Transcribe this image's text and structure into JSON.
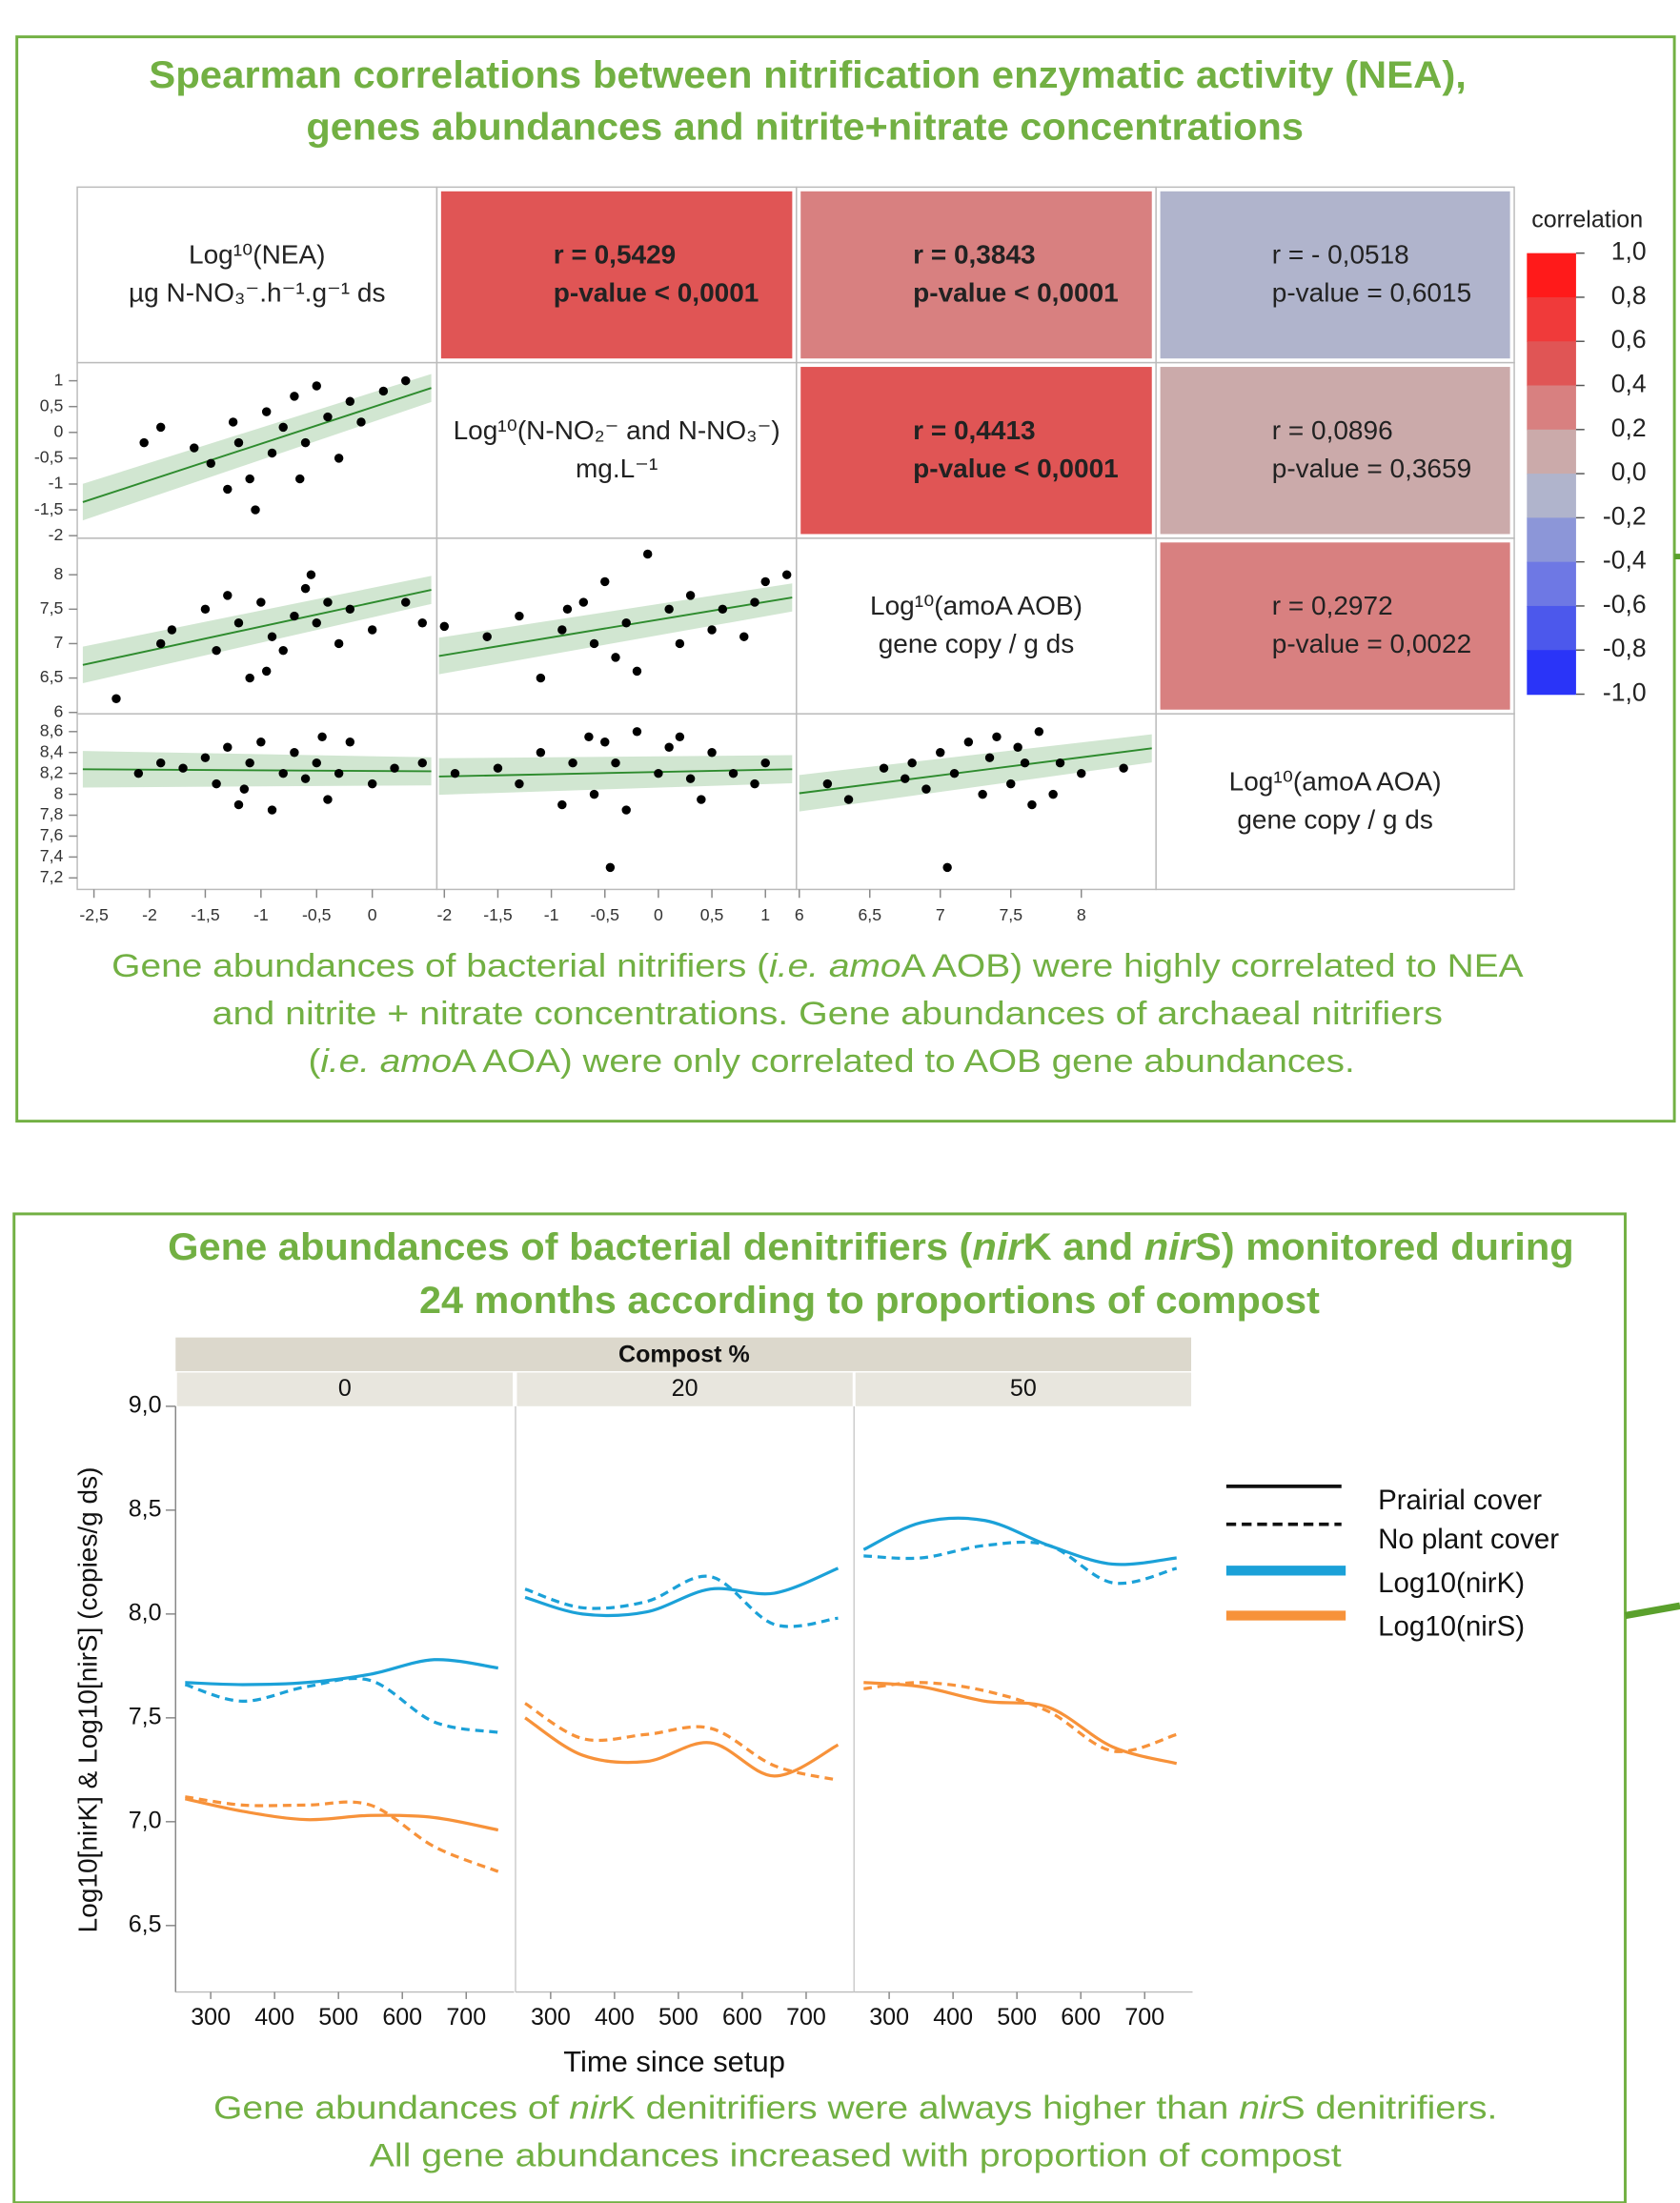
{
  "chart_data": [
    {
      "type": "correlation_matrix",
      "title": [
        "Spearman correlations between nitrification enzymatic activity (NEA),",
        "genes abundances and nitrite+nitrate concentrations"
      ],
      "variables": [
        {
          "label": [
            "Log¹⁰(NEA)",
            "µg N-NO₃⁻.h⁻¹.g⁻¹ ds"
          ],
          "xlim": [
            -2.65,
            0.58
          ],
          "xticks": [
            {
              "value": -2.5,
              "label": "-2,5"
            },
            -2,
            {
              "value": -1.5,
              "label": "-1,5"
            },
            -1,
            {
              "value": -0.5,
              "label": "-0,5"
            },
            0
          ]
        },
        {
          "label": [
            "Log¹⁰(N-NO₂⁻ and N-NO₃⁻)",
            "mg.L⁻¹"
          ],
          "xlim": [
            -2.07,
            1.29
          ],
          "xticks": [
            -2,
            {
              "value": -1.5,
              "label": "-1,5"
            },
            -1,
            {
              "value": -0.5,
              "label": "-0,5"
            },
            0,
            {
              "value": 0.5,
              "label": "0,5"
            },
            1
          ],
          "ylim": [
            -2.05,
            1.35
          ],
          "yticks": [
            1,
            {
              "value": 0.5,
              "label": "0,5"
            },
            0,
            {
              "value": -0.5,
              "label": "-0,5"
            },
            -1,
            {
              "value": -1.5,
              "label": "-1,5"
            },
            -2
          ]
        },
        {
          "label": [
            "Log¹⁰(amoA AOB)",
            "gene copy / g ds"
          ],
          "xlim": [
            5.98,
            8.53
          ],
          "xticks": [
            6,
            {
              "value": 6.5,
              "label": "6,5"
            },
            7,
            {
              "value": 7.5,
              "label": "7,5"
            },
            8
          ],
          "ylim": [
            5.98,
            8.53
          ],
          "yticks": [
            8,
            {
              "value": 7.5,
              "label": "7,5"
            },
            7,
            {
              "value": 6.5,
              "label": "6,5"
            },
            6
          ]
        },
        {
          "label": [
            "Log¹⁰(amoA AOA)",
            "gene copy / g ds"
          ],
          "ylim": [
            7.09,
            8.77
          ],
          "yticks": [
            {
              "value": 8.6,
              "label": "8,6"
            },
            {
              "value": 8.4,
              "label": "8,4"
            },
            {
              "value": 8.2,
              "label": "8,2"
            },
            8,
            {
              "value": 7.8,
              "label": "7,8"
            },
            {
              "value": 7.6,
              "label": "7,6"
            },
            {
              "value": 7.4,
              "label": "7,4"
            },
            {
              "value": 7.2,
              "label": "7,2"
            }
          ]
        }
      ],
      "r": [
        [
          0.5429,
          0.3843,
          -0.0518
        ],
        [
          0.4413,
          0.0896
        ],
        [
          0.2972
        ]
      ],
      "r_labels": [
        [
          "r = 0,5429",
          "r = 0,3843",
          "r = - 0,0518"
        ],
        [
          "r = 0,4413",
          "r = 0,0896"
        ],
        [
          "r = 0,2972"
        ]
      ],
      "p_labels": [
        [
          "p-value < 0,0001",
          "p-value < 0,0001",
          "p-value = 0,6015"
        ],
        [
          "p-value < 0,0001",
          "p-value = 0,3659"
        ],
        [
          "p-value = 0,0022"
        ]
      ],
      "scatter": [
        [
          {
            "x": [
              -2.05,
              -1.9,
              -1.6,
              -1.45,
              -1.3,
              -1.25,
              -1.1,
              -1.05,
              -0.95,
              -0.9,
              -0.8,
              -0.7,
              -0.6,
              -0.5,
              -0.4,
              -0.3,
              -0.2,
              -0.1,
              0.1,
              0.3,
              -1.2,
              -0.65
            ],
            "y": [
              -0.2,
              0.1,
              -0.3,
              -0.6,
              -1.1,
              0.2,
              -0.9,
              -1.5,
              0.4,
              -0.4,
              0.1,
              0.7,
              -0.2,
              0.9,
              0.3,
              -0.5,
              0.6,
              0.2,
              0.8,
              1.0,
              -0.2,
              -0.9
            ],
            "fit": {
              "x": [
                -2.6,
                0.53
              ],
              "y": [
                -1.35,
                0.86
              ]
            }
          }
        ],
        [
          {
            "x": [
              -2.3,
              -1.9,
              -1.8,
              -1.5,
              -1.4,
              -1.2,
              -1.1,
              -1.0,
              -0.9,
              -0.8,
              -0.7,
              -0.6,
              -0.5,
              -0.4,
              -0.3,
              -0.2,
              0.0,
              0.3,
              0.45,
              -1.3,
              -0.55,
              -0.95
            ],
            "y": [
              6.2,
              7.0,
              7.2,
              7.5,
              6.9,
              7.3,
              6.5,
              7.6,
              7.1,
              6.9,
              7.4,
              7.8,
              7.3,
              7.6,
              7.0,
              7.5,
              7.2,
              7.6,
              7.3,
              7.7,
              8.0,
              6.6
            ],
            "fit": {
              "x": [
                -2.6,
                0.53
              ],
              "y": [
                6.69,
                7.78
              ]
            }
          },
          {
            "x": [
              -2.0,
              -1.6,
              -1.3,
              -1.1,
              -0.9,
              -0.7,
              -0.6,
              -0.5,
              -0.4,
              -0.3,
              -0.2,
              -0.1,
              0.1,
              0.2,
              0.3,
              0.5,
              0.6,
              0.8,
              0.9,
              1.0,
              1.2,
              -0.85
            ],
            "y": [
              7.25,
              7.1,
              7.4,
              6.5,
              7.2,
              7.6,
              7.0,
              7.9,
              6.8,
              7.3,
              6.6,
              8.3,
              7.5,
              7.0,
              7.7,
              7.2,
              7.5,
              7.1,
              7.6,
              7.9,
              8.0,
              7.5
            ],
            "fit": {
              "x": [
                -2.05,
                1.25
              ],
              "y": [
                6.82,
                7.67
              ]
            }
          }
        ],
        [
          {
            "x": [
              -2.1,
              -1.9,
              -1.7,
              -1.5,
              -1.4,
              -1.3,
              -1.2,
              -1.1,
              -1.0,
              -0.9,
              -0.8,
              -0.7,
              -0.6,
              -0.5,
              -0.4,
              -0.3,
              -0.2,
              0.0,
              0.2,
              0.45,
              -1.15,
              -0.45
            ],
            "y": [
              8.2,
              8.3,
              8.25,
              8.35,
              8.1,
              8.45,
              7.9,
              8.3,
              8.5,
              7.85,
              8.2,
              8.4,
              8.15,
              8.3,
              7.95,
              8.2,
              8.5,
              8.1,
              8.25,
              8.3,
              8.05,
              8.55
            ],
            "fit": {
              "x": [
                -2.6,
                0.53
              ],
              "y": [
                8.24,
                8.22
              ]
            }
          },
          {
            "x": [
              -1.9,
              -1.5,
              -1.3,
              -1.1,
              -0.9,
              -0.8,
              -0.6,
              -0.5,
              -0.4,
              -0.3,
              -0.2,
              0.0,
              0.1,
              0.3,
              0.4,
              0.5,
              0.7,
              0.9,
              1.0,
              -0.45,
              -0.65,
              0.2
            ],
            "y": [
              8.2,
              8.25,
              8.1,
              8.4,
              7.9,
              8.3,
              8.0,
              8.5,
              8.3,
              7.85,
              8.6,
              8.2,
              8.45,
              8.15,
              7.95,
              8.4,
              8.2,
              8.1,
              8.3,
              7.3,
              8.55,
              8.55
            ],
            "fit": {
              "x": [
                -2.05,
                1.25
              ],
              "y": [
                8.17,
                8.24
              ]
            }
          },
          {
            "x": [
              6.2,
              6.35,
              6.6,
              6.8,
              6.9,
              7.0,
              7.05,
              7.1,
              7.2,
              7.3,
              7.35,
              7.4,
              7.5,
              7.55,
              7.6,
              7.7,
              7.8,
              7.85,
              8.0,
              8.3,
              6.75,
              7.65
            ],
            "y": [
              8.1,
              7.95,
              8.25,
              8.3,
              8.05,
              8.4,
              7.3,
              8.2,
              8.5,
              8.0,
              8.35,
              8.55,
              8.1,
              8.45,
              8.3,
              8.6,
              8.0,
              8.3,
              8.2,
              8.25,
              8.15,
              7.9
            ],
            "fit": {
              "x": [
                6.0,
                8.5
              ],
              "y": [
                8.01,
                8.44
              ]
            }
          }
        ]
      ],
      "point_color": "#000000",
      "fit_color": "#2e8b2e",
      "colorbar": {
        "title": "correlation",
        "zlim": [
          -1,
          1
        ],
        "colors": [
          "#ff1a1a",
          "#f03a3a",
          "#e05555",
          "#d88080",
          "#cbaaaa",
          "#b0b4cc",
          "#8c96d8",
          "#6e78e4",
          "#4c58ec",
          "#2a34f8"
        ],
        "ticks": [
          {
            "value": 1,
            "label": "1,0"
          },
          {
            "value": 0.8,
            "label": "0,8"
          },
          {
            "value": 0.6,
            "label": "0,6"
          },
          {
            "value": 0.4,
            "label": "0,4"
          },
          {
            "value": 0.2,
            "label": "0,2"
          },
          {
            "value": 0,
            "label": "0,0"
          },
          {
            "value": -0.2,
            "label": "-0,2"
          },
          {
            "value": -0.4,
            "label": "-0,4"
          },
          {
            "value": -0.6,
            "label": "-0,6"
          },
          {
            "value": -0.8,
            "label": "-0,8"
          },
          {
            "value": -1,
            "label": "-1,0"
          }
        ]
      },
      "caption": [
        [
          "Gene abundances of bacterial nitrifiers (",
          "i.e. amo",
          "A AOB) were highly correlated to NEA"
        ],
        [
          "and nitrite + nitrate concentrations. Gene abundances of archaeal nitrifiers"
        ],
        [
          "(",
          "i.e. amo",
          "A AOA) were only correlated to AOB gene abundances."
        ]
      ]
    },
    {
      "type": "line",
      "title": [
        [
          "Gene abundances of bacterial denitrifiers (",
          "nir",
          "K and ",
          "nir",
          "S) monitored during"
        ],
        [
          "24 months according to proportions of compost"
        ]
      ],
      "facet_title": "Compost %",
      "x_label": "Time since setup",
      "y_label": "Log10[nirK] & Log10[nirS] (copies/g ds)",
      "x": [
        260,
        350,
        450,
        550,
        650,
        750
      ],
      "xlim": [
        245,
        775
      ],
      "xticks": [
        300,
        400,
        500,
        600,
        700
      ],
      "ylim": [
        6.18,
        9.0
      ],
      "yticks": [
        {
          "value": 9,
          "label": "9,0"
        },
        {
          "value": 8.5,
          "label": "8,5"
        },
        {
          "value": 8,
          "label": "8,0"
        },
        {
          "value": 7.5,
          "label": "7,5"
        },
        {
          "value": 7,
          "label": "7,0"
        },
        {
          "value": 6.5,
          "label": "6,5"
        }
      ],
      "linestyles": [
        {
          "name": "Prairial cover",
          "dash": false
        },
        {
          "name": "No plant cover",
          "dash": true
        }
      ],
      "colors": [
        {
          "name": "Log10(nirK)",
          "color": "#1ba1d8"
        },
        {
          "name": "Log10(nirS)",
          "color": "#f7923a"
        }
      ],
      "facets": [
        {
          "label": "0",
          "series": [
            {
              "color": "#1ba1d8",
              "dash": false,
              "values": [
                7.67,
                7.66,
                7.67,
                7.71,
                7.78,
                7.74
              ]
            },
            {
              "color": "#1ba1d8",
              "dash": true,
              "values": [
                7.66,
                7.58,
                7.65,
                7.68,
                7.48,
                7.43
              ]
            },
            {
              "color": "#f7923a",
              "dash": false,
              "values": [
                7.11,
                7.05,
                7.01,
                7.03,
                7.02,
                6.96
              ]
            },
            {
              "color": "#f7923a",
              "dash": true,
              "values": [
                7.12,
                7.08,
                7.08,
                7.08,
                6.88,
                6.76
              ]
            }
          ]
        },
        {
          "label": "20",
          "series": [
            {
              "color": "#1ba1d8",
              "dash": false,
              "values": [
                8.08,
                8.0,
                8.01,
                8.12,
                8.1,
                8.22
              ]
            },
            {
              "color": "#1ba1d8",
              "dash": true,
              "values": [
                8.12,
                8.03,
                8.06,
                8.18,
                7.95,
                7.98
              ]
            },
            {
              "color": "#f7923a",
              "dash": false,
              "values": [
                7.5,
                7.32,
                7.29,
                7.38,
                7.22,
                7.37
              ]
            },
            {
              "color": "#f7923a",
              "dash": true,
              "values": [
                7.57,
                7.4,
                7.42,
                7.45,
                7.27,
                7.2
              ]
            }
          ]
        },
        {
          "label": "50",
          "series": [
            {
              "color": "#1ba1d8",
              "dash": false,
              "values": [
                8.31,
                8.44,
                8.45,
                8.33,
                8.24,
                8.27
              ]
            },
            {
              "color": "#1ba1d8",
              "dash": true,
              "values": [
                8.28,
                8.27,
                8.33,
                8.33,
                8.15,
                8.22
              ]
            },
            {
              "color": "#f7923a",
              "dash": false,
              "values": [
                7.67,
                7.65,
                7.58,
                7.55,
                7.36,
                7.28
              ]
            },
            {
              "color": "#f7923a",
              "dash": true,
              "values": [
                7.64,
                7.67,
                7.63,
                7.53,
                7.34,
                7.42
              ]
            }
          ]
        }
      ],
      "caption": [
        [
          "Gene abundances of ",
          "nir",
          "K denitrifiers were always higher than ",
          "nir",
          "S denitrifiers."
        ],
        [
          "All gene abundances increased with proportion of compost"
        ]
      ]
    }
  ]
}
